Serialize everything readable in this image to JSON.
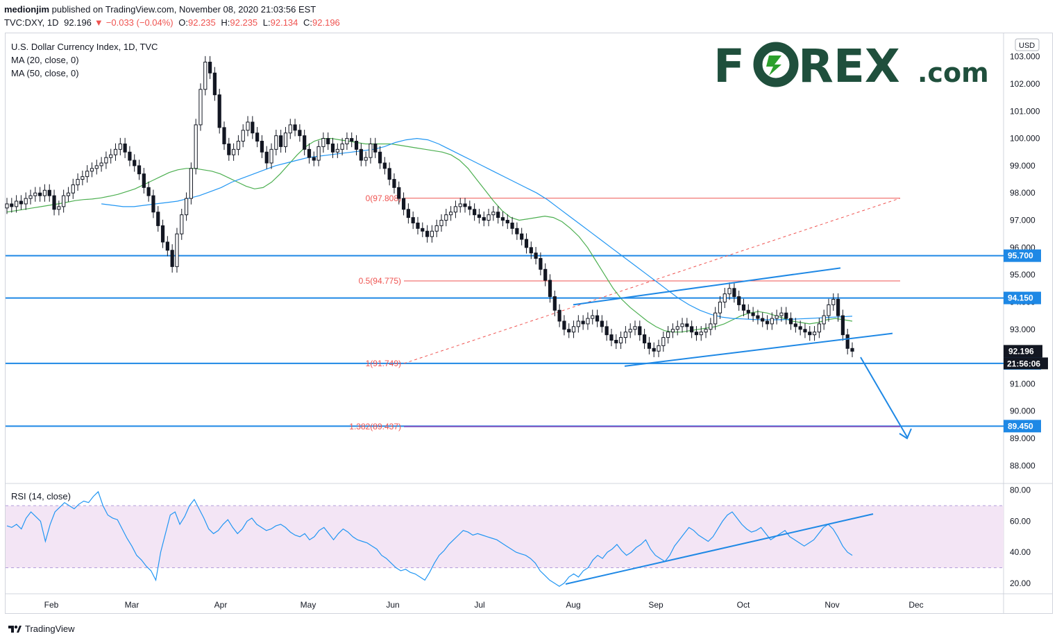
{
  "header": {
    "publisher": "medionjim",
    "published_text": "published on TradingView.com, November 08, 2020 21:03:56 EST",
    "symbol": "TVC:DXY, 1D",
    "last": "92.196",
    "change": "−0.033 (−0.04%)",
    "o_label": "O:",
    "o_value": "92.235",
    "h_label": "H:",
    "h_value": "92.235",
    "l_label": "L:",
    "l_value": "92.134",
    "c_label": "C:",
    "c_value": "92.196"
  },
  "legend": {
    "title": "U.S. Dollar Currency Index, 1D, TVC",
    "ma20": "MA (20, close, 0)",
    "ma50": "MA (50, close, 0)",
    "rsi": "RSI (14, close)"
  },
  "brand": {
    "text_left": "F",
    "text_right": "REX",
    "suffix": ".com",
    "color": "#1f4f3c",
    "accent": "#2ca02c"
  },
  "footer": {
    "tradingview": "TradingView"
  },
  "currency_badge": "USD",
  "colors": {
    "up": "#131722",
    "down": "#131722",
    "ma20": "#4caf50",
    "ma50": "#2196f3",
    "hline": "#1e88e5",
    "fib": "#ef5350",
    "rsi": "#2196f3",
    "rsi_band": "#f3e5f5"
  },
  "chart_data": {
    "type": "candlestick",
    "instrument": "U.S. Dollar Currency Index, 1D, TVC",
    "price_axis": {
      "min": 87.5,
      "max": 103.5,
      "ticks": [
        "88.000",
        "89.000",
        "90.000",
        "91.000",
        "92.000",
        "93.000",
        "94.000",
        "95.000",
        "96.000",
        "97.000",
        "98.000",
        "99.000",
        "100.000",
        "101.000",
        "102.000",
        "103.000"
      ]
    },
    "x_labels": [
      "Feb",
      "Mar",
      "Apr",
      "May",
      "Jun",
      "Jul",
      "Aug",
      "Sep",
      "Oct",
      "Nov",
      "Dec"
    ],
    "rsi_axis": {
      "min": 15,
      "max": 83,
      "ticks": [
        "20.00",
        "40.00",
        "60.00",
        "80.00"
      ],
      "band": [
        30,
        70
      ]
    },
    "horizontal_levels": [
      {
        "price": 95.7,
        "label": "95.700"
      },
      {
        "price": 94.15,
        "label": "94.150"
      },
      {
        "price": 91.75,
        "label": "91.750"
      },
      {
        "price": 89.45,
        "label": "89.450"
      }
    ],
    "last_price": {
      "label": "92.196",
      "price": 92.196
    },
    "countdown": "21:56:06",
    "fibonacci": [
      {
        "label": "0(97.808)",
        "price": 97.808
      },
      {
        "label": "0.5(94.775)",
        "price": 94.775
      },
      {
        "label": "1(91.749)",
        "price": 91.749
      },
      {
        "label": "1.382(89.437)",
        "price": 89.437
      }
    ],
    "closes": [
      97.6,
      97.5,
      97.7,
      97.6,
      97.8,
      97.9,
      98.0,
      97.9,
      98.1,
      97.9,
      97.4,
      97.5,
      97.9,
      98.0,
      98.3,
      98.5,
      98.6,
      98.8,
      98.9,
      99.0,
      99.1,
      99.3,
      99.4,
      99.6,
      99.8,
      99.5,
      99.2,
      99.0,
      98.7,
      98.2,
      97.9,
      97.3,
      96.8,
      96.2,
      95.9,
      95.3,
      96.5,
      97.2,
      97.8,
      98.9,
      100.5,
      101.8,
      102.8,
      102.4,
      101.6,
      100.4,
      99.8,
      99.4,
      99.6,
      99.9,
      100.3,
      100.6,
      100.2,
      99.9,
      99.5,
      99.1,
      99.6,
      100.1,
      99.7,
      100.2,
      100.5,
      100.3,
      100.1,
      99.6,
      99.3,
      99.2,
      99.7,
      100.0,
      99.8,
      99.5,
      99.6,
      99.8,
      100.0,
      99.9,
      99.6,
      99.2,
      99.3,
      99.8,
      99.5,
      99.1,
      98.9,
      98.5,
      98.2,
      97.8,
      97.4,
      97.1,
      96.9,
      96.7,
      96.6,
      96.4,
      96.6,
      96.8,
      97.0,
      97.2,
      97.3,
      97.5,
      97.6,
      97.5,
      97.4,
      97.2,
      97.1,
      97.0,
      97.2,
      97.3,
      97.1,
      97.0,
      96.9,
      96.7,
      96.5,
      96.3,
      96.0,
      95.8,
      95.6,
      95.2,
      94.8,
      94.2,
      93.7,
      93.3,
      93.0,
      92.9,
      93.1,
      93.3,
      93.2,
      93.4,
      93.5,
      93.3,
      93.1,
      92.8,
      92.6,
      92.5,
      92.7,
      92.9,
      93.0,
      93.1,
      92.8,
      92.5,
      92.3,
      92.2,
      92.4,
      92.7,
      92.9,
      93.0,
      93.1,
      93.2,
      93.1,
      92.9,
      92.8,
      92.9,
      93.0,
      93.2,
      93.6,
      94.0,
      94.3,
      94.5,
      94.2,
      93.9,
      93.7,
      93.6,
      93.5,
      93.4,
      93.3,
      93.2,
      93.4,
      93.5,
      93.6,
      93.4,
      93.2,
      93.1,
      93.0,
      92.9,
      92.8,
      92.9,
      93.2,
      93.5,
      93.9,
      94.1,
      93.5,
      92.8,
      92.3,
      92.196
    ],
    "ma20": [
      97.3,
      97.35,
      97.4,
      97.45,
      97.5,
      97.55,
      97.6,
      97.66,
      97.72,
      97.76,
      97.78,
      97.82,
      97.88,
      97.95,
      98.05,
      98.15,
      98.3,
      98.45,
      98.6,
      98.75,
      98.85,
      98.9,
      98.9,
      98.85,
      98.8,
      98.7,
      98.55,
      98.4,
      98.25,
      98.15,
      98.2,
      98.4,
      98.7,
      99.05,
      99.4,
      99.7,
      99.9,
      100.0,
      100.0,
      99.95,
      99.9,
      99.85,
      99.8,
      99.8,
      99.8,
      99.8,
      99.75,
      99.7,
      99.65,
      99.6,
      99.55,
      99.5,
      99.4,
      99.2,
      98.9,
      98.5,
      98.1,
      97.7,
      97.35,
      97.1,
      97.0,
      97.05,
      97.1,
      97.15,
      97.1,
      96.95,
      96.7,
      96.4,
      96.0,
      95.5,
      95.0,
      94.5,
      94.1,
      93.8,
      93.55,
      93.3,
      93.1,
      92.95,
      92.9,
      92.9,
      92.95,
      93.0,
      93.05,
      93.1,
      93.2,
      93.35,
      93.5,
      93.6,
      93.65,
      93.6,
      93.5,
      93.4,
      93.3,
      93.25,
      93.2,
      93.25,
      93.35,
      93.4,
      93.35,
      93.3
    ],
    "ma50": [
      97.6,
      97.55,
      97.5,
      97.5,
      97.55,
      97.6,
      97.65,
      97.7,
      97.8,
      97.9,
      98.05,
      98.2,
      98.4,
      98.55,
      98.7,
      98.85,
      99.0,
      99.1,
      99.2,
      99.3,
      99.35,
      99.4,
      99.45,
      99.5,
      99.55,
      99.6,
      99.7,
      99.85,
      99.95,
      100.0,
      99.95,
      99.8,
      99.6,
      99.4,
      99.2,
      99.0,
      98.8,
      98.6,
      98.4,
      98.2,
      98.0,
      97.75,
      97.45,
      97.15,
      96.85,
      96.55,
      96.25,
      95.95,
      95.65,
      95.35,
      95.05,
      94.75,
      94.45,
      94.15,
      93.9,
      93.7,
      93.55,
      93.45,
      93.4,
      93.38,
      93.36,
      93.35,
      93.35,
      93.36,
      93.38,
      93.4,
      93.42,
      93.44,
      93.46,
      93.48
    ],
    "rsi": [
      57,
      56,
      58,
      55,
      62,
      66,
      63,
      60,
      47,
      58,
      66,
      69,
      72,
      70,
      68,
      71,
      73,
      72,
      76,
      79,
      70,
      64,
      62,
      61,
      55,
      49,
      44,
      38,
      35,
      31,
      28,
      22,
      40,
      52,
      64,
      66,
      58,
      63,
      70,
      74,
      68,
      62,
      55,
      52,
      54,
      58,
      61,
      56,
      52,
      55,
      60,
      62,
      58,
      56,
      54,
      55,
      57,
      58,
      56,
      53,
      51,
      50,
      52,
      48,
      50,
      54,
      56,
      52,
      48,
      52,
      55,
      53,
      50,
      48,
      47,
      46,
      44,
      42,
      38,
      36,
      33,
      30,
      28,
      29,
      27,
      26,
      24,
      22,
      27,
      33,
      38,
      41,
      45,
      48,
      51,
      54,
      53,
      51,
      52,
      51,
      50,
      49,
      48,
      46,
      44,
      42,
      40,
      39,
      38,
      36,
      33,
      28,
      25,
      22,
      20,
      18,
      20,
      24,
      26,
      24,
      28,
      30,
      35,
      38,
      36,
      40,
      42,
      45,
      41,
      38,
      40,
      43,
      45,
      48,
      42,
      38,
      36,
      34,
      38,
      44,
      48,
      52,
      56,
      54,
      51,
      49,
      47,
      50,
      55,
      60,
      64,
      66,
      62,
      58,
      55,
      53,
      54,
      56,
      52,
      48,
      50,
      52,
      54,
      50,
      48,
      46,
      44,
      46,
      48,
      52,
      56,
      58,
      55,
      50,
      44,
      40,
      38
    ]
  },
  "drawings": {
    "upper_channel": "rising channel top",
    "lower_channel": "rising channel bottom",
    "projection_arrow": "down arrow to 89.45"
  }
}
